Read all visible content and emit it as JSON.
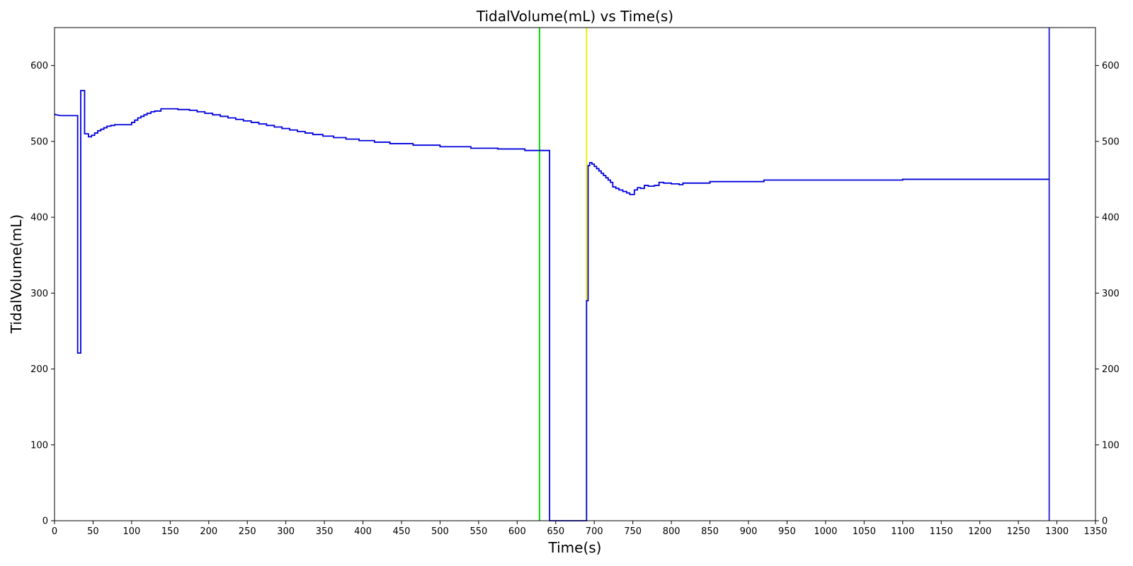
{
  "chart_data": {
    "type": "line",
    "title": "TidalVolume(mL) vs Time(s)",
    "xlabel": "Time(s)",
    "ylabel": "TidalVolume(mL)",
    "xlim": [
      0,
      1350
    ],
    "ylim": [
      0,
      650
    ],
    "x_ticks": [
      0,
      50,
      100,
      150,
      200,
      250,
      300,
      350,
      400,
      450,
      500,
      550,
      600,
      650,
      700,
      750,
      800,
      850,
      900,
      950,
      1000,
      1050,
      1100,
      1150,
      1200,
      1250,
      1300,
      1350
    ],
    "y_ticks": [
      0,
      100,
      200,
      300,
      400,
      500,
      600
    ],
    "secondary_y_axis": true,
    "grid": false,
    "line_color": "#0000dd",
    "vertical_markers": [
      {
        "x": 629,
        "color": "#00dd00"
      },
      {
        "x": 690,
        "color": "#eeee00"
      },
      {
        "x": 1290,
        "color": "#3333cc"
      }
    ],
    "series": [
      {
        "line_style": "step",
        "points": [
          [
            0,
            536
          ],
          [
            2,
            535
          ],
          [
            8,
            534
          ],
          [
            30,
            534
          ],
          [
            30,
            221
          ],
          [
            34,
            221
          ],
          [
            34,
            567
          ],
          [
            39,
            567
          ],
          [
            39,
            510
          ],
          [
            44,
            510
          ],
          [
            44,
            506
          ],
          [
            48,
            506
          ],
          [
            48,
            508
          ],
          [
            52,
            508
          ],
          [
            52,
            511
          ],
          [
            56,
            511
          ],
          [
            56,
            514
          ],
          [
            60,
            514
          ],
          [
            60,
            516
          ],
          [
            64,
            516
          ],
          [
            64,
            518
          ],
          [
            68,
            518
          ],
          [
            68,
            520
          ],
          [
            73,
            520
          ],
          [
            73,
            521
          ],
          [
            78,
            521
          ],
          [
            78,
            522
          ],
          [
            100,
            522
          ],
          [
            100,
            525
          ],
          [
            104,
            525
          ],
          [
            104,
            528
          ],
          [
            108,
            528
          ],
          [
            108,
            531
          ],
          [
            112,
            531
          ],
          [
            112,
            533
          ],
          [
            116,
            533
          ],
          [
            116,
            535
          ],
          [
            120,
            535
          ],
          [
            120,
            537
          ],
          [
            125,
            537
          ],
          [
            125,
            539
          ],
          [
            130,
            539
          ],
          [
            130,
            540
          ],
          [
            138,
            540
          ],
          [
            138,
            543
          ],
          [
            160,
            543
          ],
          [
            160,
            542
          ],
          [
            175,
            542
          ],
          [
            175,
            541
          ],
          [
            185,
            541
          ],
          [
            185,
            539
          ],
          [
            195,
            539
          ],
          [
            195,
            537
          ],
          [
            205,
            537
          ],
          [
            205,
            535
          ],
          [
            215,
            535
          ],
          [
            215,
            533
          ],
          [
            225,
            533
          ],
          [
            225,
            531
          ],
          [
            235,
            531
          ],
          [
            235,
            529
          ],
          [
            245,
            529
          ],
          [
            245,
            527
          ],
          [
            255,
            527
          ],
          [
            255,
            525
          ],
          [
            265,
            525
          ],
          [
            265,
            523
          ],
          [
            275,
            523
          ],
          [
            275,
            521
          ],
          [
            285,
            521
          ],
          [
            285,
            519
          ],
          [
            295,
            519
          ],
          [
            295,
            517
          ],
          [
            305,
            517
          ],
          [
            305,
            515
          ],
          [
            315,
            515
          ],
          [
            315,
            513
          ],
          [
            325,
            513
          ],
          [
            325,
            511
          ],
          [
            335,
            511
          ],
          [
            335,
            509
          ],
          [
            348,
            509
          ],
          [
            348,
            507
          ],
          [
            362,
            507
          ],
          [
            362,
            505
          ],
          [
            378,
            505
          ],
          [
            378,
            503
          ],
          [
            395,
            503
          ],
          [
            395,
            501
          ],
          [
            415,
            501
          ],
          [
            415,
            499
          ],
          [
            435,
            499
          ],
          [
            435,
            497
          ],
          [
            465,
            497
          ],
          [
            465,
            495
          ],
          [
            500,
            495
          ],
          [
            500,
            493
          ],
          [
            540,
            493
          ],
          [
            540,
            491
          ],
          [
            575,
            491
          ],
          [
            575,
            490
          ],
          [
            610,
            490
          ],
          [
            610,
            488
          ],
          [
            642,
            488
          ],
          [
            642,
            0
          ],
          [
            690,
            0
          ],
          [
            690,
            290
          ],
          [
            692,
            290
          ],
          [
            692,
            468
          ],
          [
            694,
            468
          ],
          [
            694,
            472
          ],
          [
            697,
            472
          ],
          [
            697,
            470
          ],
          [
            700,
            470
          ],
          [
            700,
            467
          ],
          [
            703,
            467
          ],
          [
            703,
            464
          ],
          [
            706,
            464
          ],
          [
            706,
            461
          ],
          [
            709,
            461
          ],
          [
            709,
            458
          ],
          [
            712,
            458
          ],
          [
            712,
            455
          ],
          [
            715,
            455
          ],
          [
            715,
            452
          ],
          [
            718,
            452
          ],
          [
            718,
            449
          ],
          [
            721,
            449
          ],
          [
            721,
            446
          ],
          [
            724,
            446
          ],
          [
            724,
            440
          ],
          [
            728,
            440
          ],
          [
            728,
            438
          ],
          [
            732,
            438
          ],
          [
            732,
            436
          ],
          [
            737,
            436
          ],
          [
            737,
            434
          ],
          [
            742,
            434
          ],
          [
            742,
            432
          ],
          [
            746,
            432
          ],
          [
            746,
            430
          ],
          [
            752,
            430
          ],
          [
            752,
            436
          ],
          [
            756,
            436
          ],
          [
            756,
            439
          ],
          [
            760,
            439
          ],
          [
            760,
            438
          ],
          [
            765,
            438
          ],
          [
            765,
            442
          ],
          [
            770,
            442
          ],
          [
            770,
            441
          ],
          [
            778,
            441
          ],
          [
            778,
            442
          ],
          [
            784,
            442
          ],
          [
            784,
            446
          ],
          [
            790,
            446
          ],
          [
            790,
            445
          ],
          [
            800,
            445
          ],
          [
            800,
            444
          ],
          [
            810,
            444
          ],
          [
            810,
            443
          ],
          [
            815,
            443
          ],
          [
            815,
            445
          ],
          [
            850,
            445
          ],
          [
            850,
            447
          ],
          [
            920,
            447
          ],
          [
            920,
            449
          ],
          [
            1100,
            449
          ],
          [
            1100,
            450
          ],
          [
            1290,
            450
          ]
        ]
      }
    ]
  }
}
